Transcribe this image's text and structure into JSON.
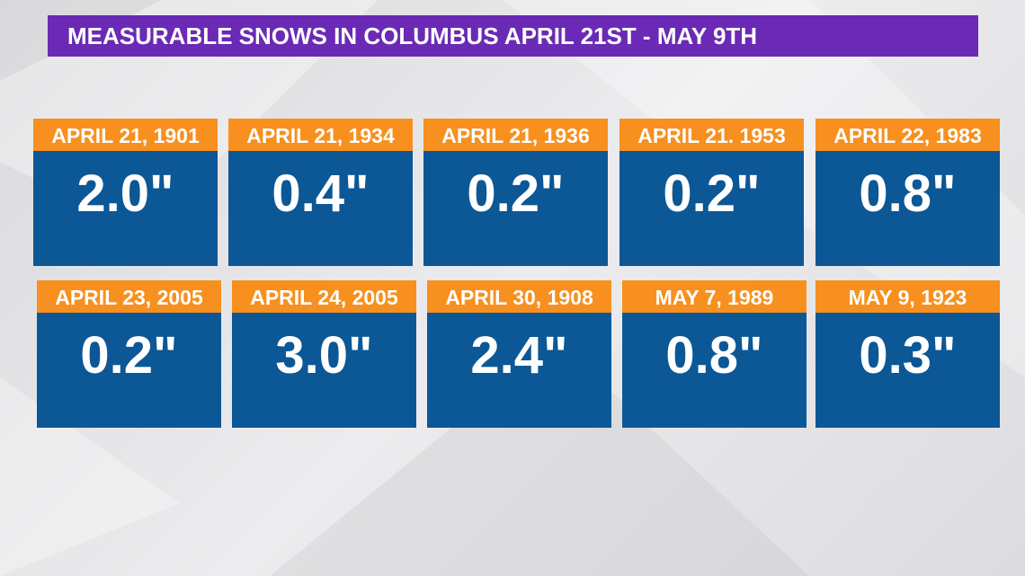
{
  "header": {
    "title": "MEASURABLE SNOWS IN COLUMBUS APRIL 21ST - MAY 9TH"
  },
  "cards": [
    {
      "date": "APRIL 21, 1901",
      "amount": "2.0\""
    },
    {
      "date": "APRIL 21, 1934",
      "amount": "0.4\""
    },
    {
      "date": "APRIL 21, 1936",
      "amount": "0.2\""
    },
    {
      "date": "APRIL 21. 1953",
      "amount": "0.2\""
    },
    {
      "date": "APRIL 22, 1983",
      "amount": "0.8\""
    },
    {
      "date": "APRIL 23, 2005",
      "amount": "0.2\""
    },
    {
      "date": "APRIL 24, 2005",
      "amount": "3.0\""
    },
    {
      "date": "APRIL 30, 1908",
      "amount": "2.4\""
    },
    {
      "date": "MAY 7, 1989",
      "amount": "0.8\""
    },
    {
      "date": "MAY 9, 1923",
      "amount": "0.3\""
    }
  ]
}
